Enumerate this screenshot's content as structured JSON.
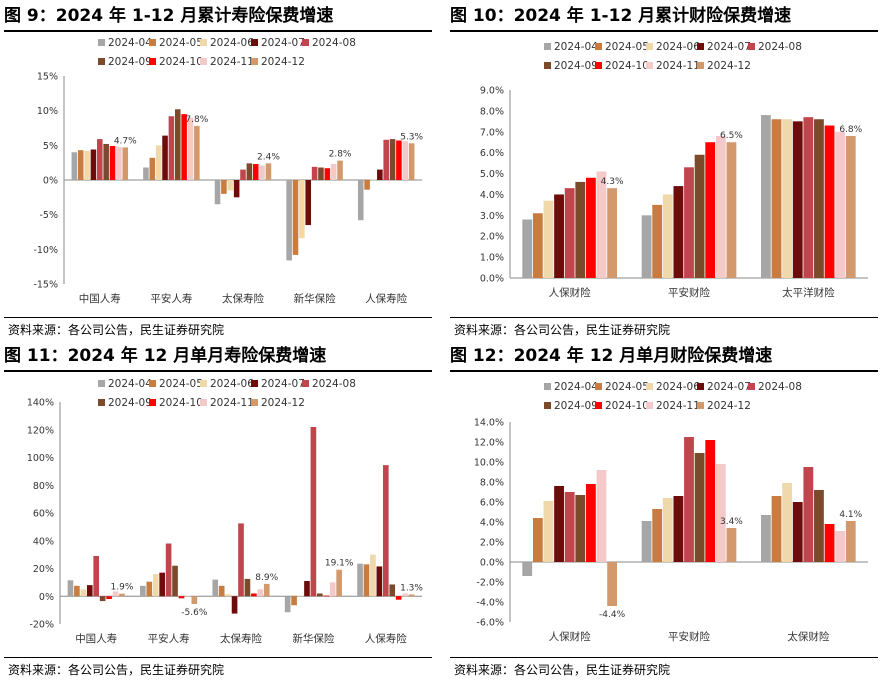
{
  "charts": [
    {
      "title": "图 9：2024 年 1-12 月累计寿险保费增速",
      "source": "资料来源：各公司公告，民生证券研究院",
      "chart_type": "bar",
      "categories": [
        "中国人寿",
        "平安人寿",
        "太保寿险",
        "新华保险",
        "人保寿险"
      ],
      "y_range": [
        -15,
        15
      ],
      "y_step": 5,
      "y_format": "percent0",
      "series_names": [
        "2024-04",
        "2024-05",
        "2024-06",
        "2024-07",
        "2024-08",
        "2024-09",
        "2024-10",
        "2024-11",
        "2024-12"
      ],
      "values": [
        [
          4.0,
          4.3,
          4.2,
          4.4,
          5.9,
          5.2,
          4.9,
          4.8,
          4.7
        ],
        [
          1.8,
          3.2,
          5.0,
          6.4,
          9.2,
          10.2,
          9.5,
          9.0,
          7.8
        ],
        [
          -3.5,
          -2.0,
          -1.5,
          -2.5,
          1.5,
          2.4,
          2.3,
          2.1,
          2.4
        ],
        [
          -11.6,
          -10.8,
          -8.4,
          -6.5,
          1.9,
          1.8,
          1.7,
          2.3,
          2.8
        ],
        [
          -5.8,
          -1.4,
          0.1,
          1.5,
          5.8,
          5.9,
          5.7,
          5.6,
          5.3
        ]
      ],
      "value_labels": [
        "4.7%",
        "7.8%",
        "2.4%",
        "2.8%",
        "5.3%"
      ]
    },
    {
      "title": "图 10：2024 年 1-12 月累计财险保费增速",
      "source": "资料来源：各公司公告，民生证券研究院",
      "chart_type": "bar",
      "categories": [
        "人保财险",
        "平安财险",
        "太平洋财险"
      ],
      "y_range": [
        0,
        9
      ],
      "y_step": 1,
      "y_format": "percent1",
      "series_names": [
        "2024-04",
        "2024-05",
        "2024-06",
        "2024-07",
        "2024-08",
        "2024-09",
        "2024-10",
        "2024-11",
        "2024-12"
      ],
      "values": [
        [
          2.8,
          3.1,
          3.7,
          4.0,
          4.3,
          4.6,
          4.8,
          5.1,
          4.3
        ],
        [
          3.0,
          3.5,
          4.0,
          4.4,
          5.3,
          5.9,
          6.5,
          6.8,
          6.5
        ],
        [
          7.8,
          7.6,
          7.6,
          7.5,
          7.7,
          7.6,
          7.3,
          7.0,
          6.8
        ]
      ],
      "value_labels": [
        "4.3%",
        "6.5%",
        "6.8%"
      ]
    },
    {
      "title": "图 11：2024 年 12 月单月寿险保费增速",
      "source": "资料来源：各公司公告，民生证券研究院",
      "chart_type": "bar",
      "categories": [
        "中国人寿",
        "平安人寿",
        "太保寿险",
        "新华保险",
        "人保寿险"
      ],
      "y_range": [
        -20,
        140
      ],
      "y_step": 20,
      "y_format": "percent0",
      "series_names": [
        "2024-04",
        "2024-05",
        "2024-06",
        "2024-07",
        "2024-08",
        "2024-09",
        "2024-10",
        "2024-11",
        "2024-12"
      ],
      "values": [
        [
          11.5,
          7.5,
          5.0,
          8.0,
          29.0,
          -3.5,
          -2.0,
          3.5,
          1.9
        ],
        [
          7.5,
          10.5,
          16.0,
          17.0,
          38.0,
          22.0,
          -1.5,
          0.5,
          -5.6
        ],
        [
          12.0,
          7.5,
          1.5,
          -12.5,
          52.5,
          12.5,
          2.0,
          5.0,
          8.9
        ],
        [
          -11.5,
          -6.5,
          0.5,
          11.0,
          122.0,
          2.0,
          0.5,
          10.0,
          19.1
        ],
        [
          23.5,
          23.0,
          30.0,
          21.5,
          94.5,
          8.5,
          -2.5,
          2.0,
          1.3
        ]
      ],
      "value_labels": [
        "1.9%",
        "-5.6%",
        "8.9%",
        "19.1%",
        "1.3%"
      ]
    },
    {
      "title": "图 12：2024 年 12 月单月财险保费增速",
      "source": "资料来源：各公司公告，民生证券研究院",
      "chart_type": "bar",
      "categories": [
        "人保财险",
        "平安财险",
        "太保财险"
      ],
      "y_range": [
        -6,
        14
      ],
      "y_step": 2,
      "y_format": "percent1",
      "series_names": [
        "2024-04",
        "2024-05",
        "2024-06",
        "2024-07",
        "2024-08",
        "2024-09",
        "2024-10",
        "2024-11",
        "2024-12"
      ],
      "values": [
        [
          -1.4,
          4.4,
          6.1,
          7.6,
          7.0,
          6.7,
          7.8,
          9.2,
          -4.4
        ],
        [
          4.1,
          5.3,
          6.4,
          6.6,
          12.5,
          10.9,
          12.2,
          9.8,
          3.4
        ],
        [
          4.7,
          6.6,
          7.9,
          6.0,
          9.5,
          7.2,
          3.8,
          3.1,
          4.1
        ]
      ],
      "value_labels": [
        "-4.4%",
        "3.4%",
        "4.1%"
      ]
    }
  ],
  "colors": [
    "#a6a6a6",
    "#c97c3f",
    "#efd8a9",
    "#6e0b0b",
    "#c0454d",
    "#7b4a2b",
    "#ff0000",
    "#f4c9c9",
    "#d29a6c"
  ],
  "chart_data": [
    {
      "type": "bar",
      "title": "图 9：2024 年 1-12 月累计寿险保费增速",
      "categories": [
        "中国人寿",
        "平安人寿",
        "太保寿险",
        "新华保险",
        "人保寿险"
      ],
      "ylim": [
        -15,
        15
      ],
      "series": [
        {
          "name": "2024-04",
          "values": [
            4.0,
            1.8,
            -3.5,
            -11.6,
            -5.8
          ]
        },
        {
          "name": "2024-05",
          "values": [
            4.3,
            3.2,
            -2.0,
            -10.8,
            -1.4
          ]
        },
        {
          "name": "2024-06",
          "values": [
            4.2,
            5.0,
            -1.5,
            -8.4,
            0.1
          ]
        },
        {
          "name": "2024-07",
          "values": [
            4.4,
            6.4,
            -2.5,
            -6.5,
            1.5
          ]
        },
        {
          "name": "2024-08",
          "values": [
            5.9,
            9.2,
            1.5,
            1.9,
            5.8
          ]
        },
        {
          "name": "2024-09",
          "values": [
            5.2,
            10.2,
            2.4,
            1.8,
            5.9
          ]
        },
        {
          "name": "2024-10",
          "values": [
            4.9,
            9.5,
            2.3,
            1.7,
            5.7
          ]
        },
        {
          "name": "2024-11",
          "values": [
            4.8,
            9.0,
            2.1,
            2.3,
            5.6
          ]
        },
        {
          "name": "2024-12",
          "values": [
            4.7,
            7.8,
            2.4,
            2.8,
            5.3
          ]
        }
      ]
    },
    {
      "type": "bar",
      "title": "图 10：2024 年 1-12 月累计财险保费增速",
      "categories": [
        "人保财险",
        "平安财险",
        "太平洋财险"
      ],
      "ylim": [
        0,
        9
      ],
      "series": [
        {
          "name": "2024-04",
          "values": [
            2.8,
            3.0,
            7.8
          ]
        },
        {
          "name": "2024-05",
          "values": [
            3.1,
            3.5,
            7.6
          ]
        },
        {
          "name": "2024-06",
          "values": [
            3.7,
            4.0,
            7.6
          ]
        },
        {
          "name": "2024-07",
          "values": [
            4.0,
            4.4,
            7.5
          ]
        },
        {
          "name": "2024-08",
          "values": [
            4.3,
            5.3,
            7.7
          ]
        },
        {
          "name": "2024-09",
          "values": [
            4.6,
            5.9,
            7.6
          ]
        },
        {
          "name": "2024-10",
          "values": [
            4.8,
            6.5,
            7.3
          ]
        },
        {
          "name": "2024-11",
          "values": [
            5.1,
            6.8,
            7.0
          ]
        },
        {
          "name": "2024-12",
          "values": [
            4.3,
            6.5,
            6.8
          ]
        }
      ]
    },
    {
      "type": "bar",
      "title": "图 11：2024 年 12 月单月寿险保费增速",
      "categories": [
        "中国人寿",
        "平安人寿",
        "太保寿险",
        "新华保险",
        "人保寿险"
      ],
      "ylim": [
        -20,
        140
      ],
      "series": [
        {
          "name": "2024-04",
          "values": [
            11.5,
            7.5,
            12.0,
            -11.5,
            23.5
          ]
        },
        {
          "name": "2024-05",
          "values": [
            7.5,
            10.5,
            7.5,
            -6.5,
            23.0
          ]
        },
        {
          "name": "2024-06",
          "values": [
            5.0,
            16.0,
            1.5,
            0.5,
            30.0
          ]
        },
        {
          "name": "2024-07",
          "values": [
            8.0,
            17.0,
            -12.5,
            11.0,
            21.5
          ]
        },
        {
          "name": "2024-08",
          "values": [
            29.0,
            38.0,
            52.5,
            122.0,
            94.5
          ]
        },
        {
          "name": "2024-09",
          "values": [
            -3.5,
            22.0,
            12.5,
            2.0,
            8.5
          ]
        },
        {
          "name": "2024-10",
          "values": [
            -2.0,
            -1.5,
            2.0,
            0.5,
            -2.5
          ]
        },
        {
          "name": "2024-11",
          "values": [
            3.5,
            0.5,
            5.0,
            10.0,
            2.0
          ]
        },
        {
          "name": "2024-12",
          "values": [
            1.9,
            -5.6,
            8.9,
            19.1,
            1.3
          ]
        }
      ]
    },
    {
      "type": "bar",
      "title": "图 12：2024 年 12 月单月财险保费增速",
      "categories": [
        "人保财险",
        "平安财险",
        "太保财险"
      ],
      "ylim": [
        -6,
        14
      ],
      "series": [
        {
          "name": "2024-04",
          "values": [
            -1.4,
            4.1,
            4.7
          ]
        },
        {
          "name": "2024-05",
          "values": [
            4.4,
            5.3,
            6.6
          ]
        },
        {
          "name": "2024-06",
          "values": [
            6.1,
            6.4,
            7.9
          ]
        },
        {
          "name": "2024-07",
          "values": [
            7.6,
            6.6,
            6.0
          ]
        },
        {
          "name": "2024-08",
          "values": [
            7.0,
            12.5,
            9.5
          ]
        },
        {
          "name": "2024-09",
          "values": [
            6.7,
            10.9,
            7.2
          ]
        },
        {
          "name": "2024-10",
          "values": [
            7.8,
            12.2,
            3.8
          ]
        },
        {
          "name": "2024-11",
          "values": [
            9.2,
            9.8,
            3.1
          ]
        },
        {
          "name": "2024-12",
          "values": [
            -4.4,
            3.4,
            4.1
          ]
        }
      ]
    }
  ]
}
